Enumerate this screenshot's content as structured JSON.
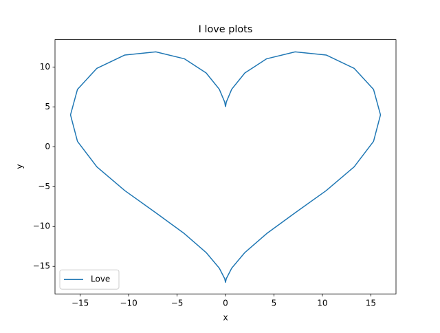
{
  "chart_data": {
    "type": "line",
    "title": "I love plots",
    "x_label": "x",
    "y_label": "y",
    "x": [
      0,
      0.084,
      0.64,
      2,
      4.249,
      7.192,
      10.392,
      13.276,
      15.282,
      16,
      15.282,
      13.276,
      10.392,
      7.192,
      4.249,
      2,
      0.64,
      0.084,
      0,
      -0.084,
      -0.64,
      -2,
      -4.249,
      -7.192,
      -10.392,
      -13.276,
      -15.282,
      -16,
      -15.282,
      -13.276,
      -10.392,
      -7.192,
      -4.249,
      -2,
      -0.64,
      -0.084,
      0
    ],
    "series": [
      {
        "name": "Love",
        "color": "#1f77b4",
        "values": [
          5,
          5.606,
          7.212,
          9.258,
          11.03,
          11.896,
          11.5,
          9.835,
          7.19,
          4,
          0.675,
          -2.522,
          -5.5,
          -8.28,
          -10.887,
          -13.258,
          -15.22,
          -16.535,
          -17,
          -16.535,
          -15.22,
          -13.258,
          -10.887,
          -8.28,
          -5.5,
          -2.522,
          0.675,
          4,
          7.19,
          9.835,
          11.5,
          11.896,
          11.03,
          9.258,
          7.212,
          5.606,
          5
        ]
      }
    ],
    "xlim": [
      -17.6,
      17.6
    ],
    "ylim": [
      -18.45,
      13.43
    ],
    "xticks": [
      {
        "value": -15,
        "label": "−15"
      },
      {
        "value": -10,
        "label": "−10"
      },
      {
        "value": -5,
        "label": "−5"
      },
      0,
      5,
      10,
      15
    ],
    "yticks": [
      {
        "value": -15,
        "label": "−15"
      },
      {
        "value": -10,
        "label": "−10"
      },
      {
        "value": -5,
        "label": "−5"
      },
      0,
      5,
      10
    ],
    "grid": false,
    "legend": "lower left"
  }
}
